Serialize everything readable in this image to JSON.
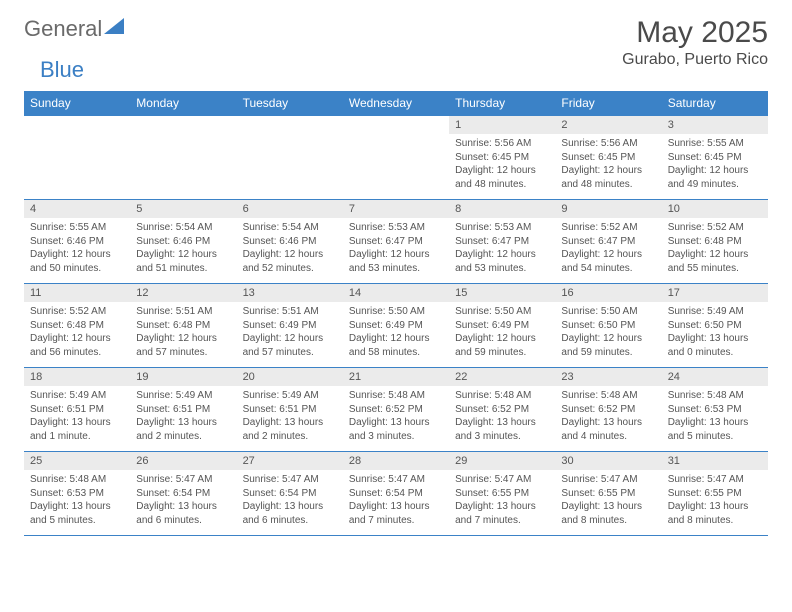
{
  "logo": {
    "text1": "General",
    "text2": "Blue"
  },
  "title": "May 2025",
  "location": "Gurabo, Puerto Rico",
  "weekdays": [
    "Sunday",
    "Monday",
    "Tuesday",
    "Wednesday",
    "Thursday",
    "Friday",
    "Saturday"
  ],
  "colors": {
    "header_bg": "#3b82c7",
    "header_text": "#ffffff",
    "daynum_bg": "#ebebeb",
    "border": "#3b82c7",
    "text": "#555555"
  },
  "weeks": [
    {
      "days": [
        {
          "num": "",
          "lines": []
        },
        {
          "num": "",
          "lines": []
        },
        {
          "num": "",
          "lines": []
        },
        {
          "num": "",
          "lines": []
        },
        {
          "num": "1",
          "lines": [
            "Sunrise: 5:56 AM",
            "Sunset: 6:45 PM",
            "Daylight: 12 hours",
            "and 48 minutes."
          ]
        },
        {
          "num": "2",
          "lines": [
            "Sunrise: 5:56 AM",
            "Sunset: 6:45 PM",
            "Daylight: 12 hours",
            "and 48 minutes."
          ]
        },
        {
          "num": "3",
          "lines": [
            "Sunrise: 5:55 AM",
            "Sunset: 6:45 PM",
            "Daylight: 12 hours",
            "and 49 minutes."
          ]
        }
      ]
    },
    {
      "days": [
        {
          "num": "4",
          "lines": [
            "Sunrise: 5:55 AM",
            "Sunset: 6:46 PM",
            "Daylight: 12 hours",
            "and 50 minutes."
          ]
        },
        {
          "num": "5",
          "lines": [
            "Sunrise: 5:54 AM",
            "Sunset: 6:46 PM",
            "Daylight: 12 hours",
            "and 51 minutes."
          ]
        },
        {
          "num": "6",
          "lines": [
            "Sunrise: 5:54 AM",
            "Sunset: 6:46 PM",
            "Daylight: 12 hours",
            "and 52 minutes."
          ]
        },
        {
          "num": "7",
          "lines": [
            "Sunrise: 5:53 AM",
            "Sunset: 6:47 PM",
            "Daylight: 12 hours",
            "and 53 minutes."
          ]
        },
        {
          "num": "8",
          "lines": [
            "Sunrise: 5:53 AM",
            "Sunset: 6:47 PM",
            "Daylight: 12 hours",
            "and 53 minutes."
          ]
        },
        {
          "num": "9",
          "lines": [
            "Sunrise: 5:52 AM",
            "Sunset: 6:47 PM",
            "Daylight: 12 hours",
            "and 54 minutes."
          ]
        },
        {
          "num": "10",
          "lines": [
            "Sunrise: 5:52 AM",
            "Sunset: 6:48 PM",
            "Daylight: 12 hours",
            "and 55 minutes."
          ]
        }
      ]
    },
    {
      "days": [
        {
          "num": "11",
          "lines": [
            "Sunrise: 5:52 AM",
            "Sunset: 6:48 PM",
            "Daylight: 12 hours",
            "and 56 minutes."
          ]
        },
        {
          "num": "12",
          "lines": [
            "Sunrise: 5:51 AM",
            "Sunset: 6:48 PM",
            "Daylight: 12 hours",
            "and 57 minutes."
          ]
        },
        {
          "num": "13",
          "lines": [
            "Sunrise: 5:51 AM",
            "Sunset: 6:49 PM",
            "Daylight: 12 hours",
            "and 57 minutes."
          ]
        },
        {
          "num": "14",
          "lines": [
            "Sunrise: 5:50 AM",
            "Sunset: 6:49 PM",
            "Daylight: 12 hours",
            "and 58 minutes."
          ]
        },
        {
          "num": "15",
          "lines": [
            "Sunrise: 5:50 AM",
            "Sunset: 6:49 PM",
            "Daylight: 12 hours",
            "and 59 minutes."
          ]
        },
        {
          "num": "16",
          "lines": [
            "Sunrise: 5:50 AM",
            "Sunset: 6:50 PM",
            "Daylight: 12 hours",
            "and 59 minutes."
          ]
        },
        {
          "num": "17",
          "lines": [
            "Sunrise: 5:49 AM",
            "Sunset: 6:50 PM",
            "Daylight: 13 hours",
            "and 0 minutes."
          ]
        }
      ]
    },
    {
      "days": [
        {
          "num": "18",
          "lines": [
            "Sunrise: 5:49 AM",
            "Sunset: 6:51 PM",
            "Daylight: 13 hours",
            "and 1 minute."
          ]
        },
        {
          "num": "19",
          "lines": [
            "Sunrise: 5:49 AM",
            "Sunset: 6:51 PM",
            "Daylight: 13 hours",
            "and 2 minutes."
          ]
        },
        {
          "num": "20",
          "lines": [
            "Sunrise: 5:49 AM",
            "Sunset: 6:51 PM",
            "Daylight: 13 hours",
            "and 2 minutes."
          ]
        },
        {
          "num": "21",
          "lines": [
            "Sunrise: 5:48 AM",
            "Sunset: 6:52 PM",
            "Daylight: 13 hours",
            "and 3 minutes."
          ]
        },
        {
          "num": "22",
          "lines": [
            "Sunrise: 5:48 AM",
            "Sunset: 6:52 PM",
            "Daylight: 13 hours",
            "and 3 minutes."
          ]
        },
        {
          "num": "23",
          "lines": [
            "Sunrise: 5:48 AM",
            "Sunset: 6:52 PM",
            "Daylight: 13 hours",
            "and 4 minutes."
          ]
        },
        {
          "num": "24",
          "lines": [
            "Sunrise: 5:48 AM",
            "Sunset: 6:53 PM",
            "Daylight: 13 hours",
            "and 5 minutes."
          ]
        }
      ]
    },
    {
      "days": [
        {
          "num": "25",
          "lines": [
            "Sunrise: 5:48 AM",
            "Sunset: 6:53 PM",
            "Daylight: 13 hours",
            "and 5 minutes."
          ]
        },
        {
          "num": "26",
          "lines": [
            "Sunrise: 5:47 AM",
            "Sunset: 6:54 PM",
            "Daylight: 13 hours",
            "and 6 minutes."
          ]
        },
        {
          "num": "27",
          "lines": [
            "Sunrise: 5:47 AM",
            "Sunset: 6:54 PM",
            "Daylight: 13 hours",
            "and 6 minutes."
          ]
        },
        {
          "num": "28",
          "lines": [
            "Sunrise: 5:47 AM",
            "Sunset: 6:54 PM",
            "Daylight: 13 hours",
            "and 7 minutes."
          ]
        },
        {
          "num": "29",
          "lines": [
            "Sunrise: 5:47 AM",
            "Sunset: 6:55 PM",
            "Daylight: 13 hours",
            "and 7 minutes."
          ]
        },
        {
          "num": "30",
          "lines": [
            "Sunrise: 5:47 AM",
            "Sunset: 6:55 PM",
            "Daylight: 13 hours",
            "and 8 minutes."
          ]
        },
        {
          "num": "31",
          "lines": [
            "Sunrise: 5:47 AM",
            "Sunset: 6:55 PM",
            "Daylight: 13 hours",
            "and 8 minutes."
          ]
        }
      ]
    }
  ]
}
